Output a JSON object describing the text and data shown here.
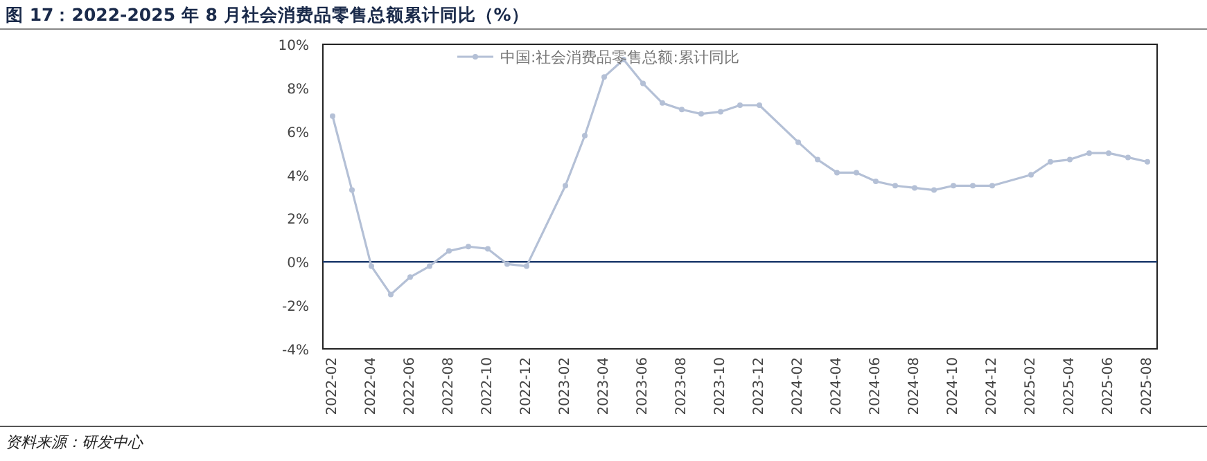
{
  "chart_data": {
    "type": "line",
    "title": "图 17：2022-2025 年 8 月社会消费品零售总额累计同比（%）",
    "categories": [
      "2022-02",
      null,
      "2022-04",
      null,
      "2022-06",
      null,
      "2022-08",
      null,
      "2022-10",
      null,
      "2022-12",
      null,
      "2023-02",
      null,
      "2023-04",
      null,
      "2023-06",
      null,
      "2023-08",
      null,
      "2023-10",
      null,
      "2023-12",
      null,
      "2024-02",
      null,
      "2024-04",
      null,
      "2024-06",
      null,
      "2024-08",
      null,
      "2024-10",
      null,
      "2024-12",
      null,
      "2025-02",
      null,
      "2025-04",
      null,
      "2025-06",
      null,
      "2025-08"
    ],
    "series": [
      {
        "name": "中国:社会消费品零售总额:累计同比",
        "color": "#b4c0d6",
        "values": [
          6.7,
          3.3,
          -0.2,
          -1.5,
          -0.7,
          -0.2,
          0.5,
          0.7,
          0.6,
          -0.1,
          -0.2,
          null,
          3.5,
          5.8,
          8.5,
          9.3,
          8.2,
          7.3,
          7.0,
          6.8,
          6.9,
          7.2,
          7.2,
          null,
          5.5,
          4.7,
          4.1,
          4.1,
          3.7,
          3.5,
          3.4,
          3.3,
          3.5,
          3.5,
          3.5,
          null,
          4.0,
          4.6,
          4.7,
          5.0,
          5.0,
          4.8,
          4.6
        ]
      }
    ],
    "ylim": [
      -4,
      10
    ],
    "yticks": [
      {
        "value": -4,
        "label": "-4%"
      },
      {
        "value": -2,
        "label": "-2%"
      },
      {
        "value": 0,
        "label": "0%"
      },
      {
        "value": 2,
        "label": "2%"
      },
      {
        "value": 4,
        "label": "4%"
      },
      {
        "value": 6,
        "label": "6%"
      },
      {
        "value": 8,
        "label": "8%"
      },
      {
        "value": 10,
        "label": "10%"
      }
    ],
    "ref_lines": [
      {
        "axis": "y",
        "value": 0,
        "color": "#1f3c6e"
      }
    ],
    "marker": "circle",
    "line_style": "solid",
    "grid": false,
    "legend": "top",
    "annotations": [
      "资料来源：研发中心"
    ]
  }
}
